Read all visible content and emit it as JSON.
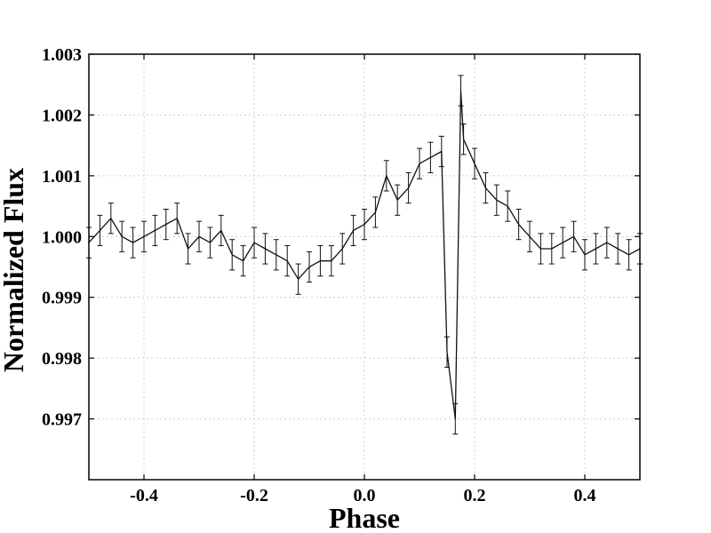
{
  "chart_data": {
    "type": "line",
    "title": "",
    "xlabel": "Phase",
    "ylabel": "Normalized Flux",
    "xlim": [
      -0.5,
      0.5
    ],
    "ylim": [
      0.996,
      1.003
    ],
    "x_ticks": [
      -0.4,
      -0.2,
      0.0,
      0.2,
      0.4
    ],
    "x_tick_labels": [
      "-0.4",
      "-0.2",
      "0.0",
      "0.2",
      "0.4"
    ],
    "y_ticks": [
      0.997,
      0.998,
      0.999,
      1.0,
      1.001,
      1.002,
      1.003
    ],
    "y_tick_labels": [
      "0.997",
      "0.998",
      "0.999",
      "1.000",
      "1.001",
      "1.002",
      "1.003"
    ],
    "grid": true,
    "error_bar": 0.00025,
    "colors": {
      "line": "#111111",
      "grid": "#cfcfcf"
    },
    "series": [
      {
        "x": [
          -0.5,
          -0.48,
          -0.46,
          -0.44,
          -0.42,
          -0.4,
          -0.38,
          -0.36,
          -0.34,
          -0.32,
          -0.3,
          -0.28,
          -0.26,
          -0.24,
          -0.22,
          -0.2,
          -0.18,
          -0.16,
          -0.14,
          -0.12,
          -0.1,
          -0.08,
          -0.06,
          -0.04,
          -0.02,
          0.0,
          0.02,
          0.04,
          0.06,
          0.08,
          0.1,
          0.12,
          0.14,
          0.15,
          0.165,
          0.175,
          0.18,
          0.2,
          0.22,
          0.24,
          0.26,
          0.28,
          0.3,
          0.32,
          0.34,
          0.36,
          0.38,
          0.4,
          0.42,
          0.44,
          0.46,
          0.48,
          0.5
        ],
        "y": [
          0.9999,
          1.0001,
          1.0003,
          1.0,
          0.9999,
          1.0,
          1.0001,
          1.0002,
          1.0003,
          0.9998,
          1.0,
          0.9999,
          1.0001,
          0.9997,
          0.9996,
          0.9999,
          0.9998,
          0.9997,
          0.9996,
          0.9993,
          0.9995,
          0.9996,
          0.9996,
          0.9998,
          1.0001,
          1.0002,
          1.0004,
          1.001,
          1.0006,
          1.0008,
          1.0012,
          1.0013,
          1.0014,
          0.9981,
          0.997,
          1.0024,
          1.0016,
          1.0012,
          1.0008,
          1.0006,
          1.0005,
          1.0002,
          1.0,
          0.9998,
          0.9998,
          0.9999,
          1.0,
          0.9997,
          0.9998,
          0.9999,
          0.9998,
          0.9997,
          0.9998
        ]
      }
    ]
  }
}
